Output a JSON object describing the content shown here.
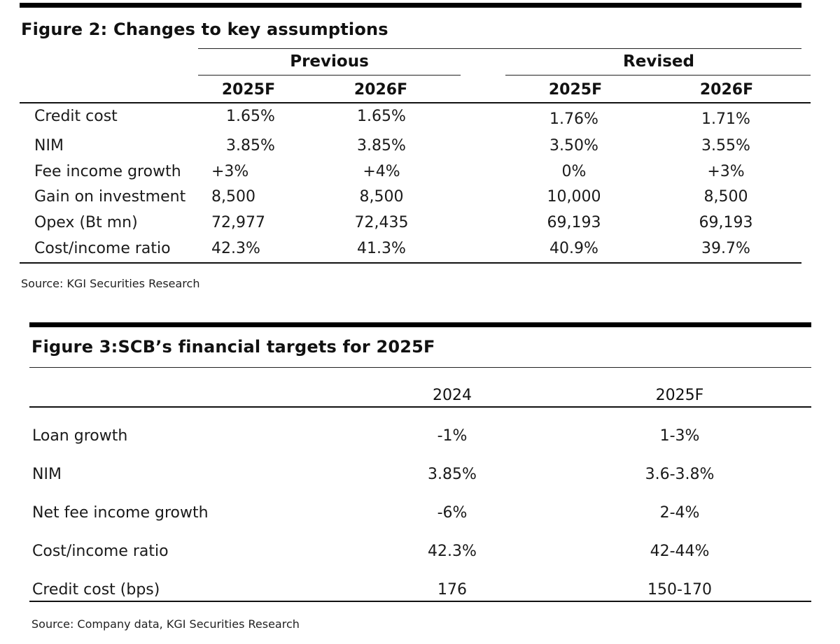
{
  "figure2": {
    "title": "Figure 2: Changes to key assumptions",
    "groups": [
      "Previous",
      "Revised"
    ],
    "years": [
      "2025F",
      "2026F",
      "2025F",
      "2026F"
    ],
    "rows": [
      {
        "label": "Credit cost",
        "values": [
          "1.65%",
          "1.65%",
          "1.76%",
          "1.71%"
        ]
      },
      {
        "label": "NIM",
        "values": [
          "3.85%",
          "3.85%",
          "3.50%",
          "3.55%"
        ]
      },
      {
        "label": "Fee income growth",
        "values": [
          "+3%",
          "+4%",
          "0%",
          "+3%"
        ]
      },
      {
        "label": "Gain on investment",
        "values": [
          "8,500",
          "8,500",
          "10,000",
          "8,500"
        ]
      },
      {
        "label": "Opex (Bt mn)",
        "values": [
          "72,977",
          "72,435",
          "69,193",
          "69,193"
        ]
      },
      {
        "label": "Cost/income ratio",
        "values": [
          "42.3%",
          "41.3%",
          "40.9%",
          "39.7%"
        ]
      }
    ],
    "source": "Source: KGI Securities Research"
  },
  "figure3": {
    "title": "Figure 3:SCB’s financial targets for 2025F",
    "years": [
      "2024",
      "2025F"
    ],
    "rows": [
      {
        "label": "Loan growth",
        "values": [
          "-1%",
          "1-3%"
        ]
      },
      {
        "label": "NIM",
        "values": [
          "3.85%",
          "3.6-3.8%"
        ]
      },
      {
        "label": "Net fee income growth",
        "values": [
          "-6%",
          "2-4%"
        ]
      },
      {
        "label": "Cost/income ratio",
        "values": [
          "42.3%",
          "42-44%"
        ]
      },
      {
        "label": "Credit cost (bps)",
        "values": [
          "176",
          "150-170"
        ]
      }
    ],
    "source": "Source: Company data, KGI Securities Research"
  }
}
